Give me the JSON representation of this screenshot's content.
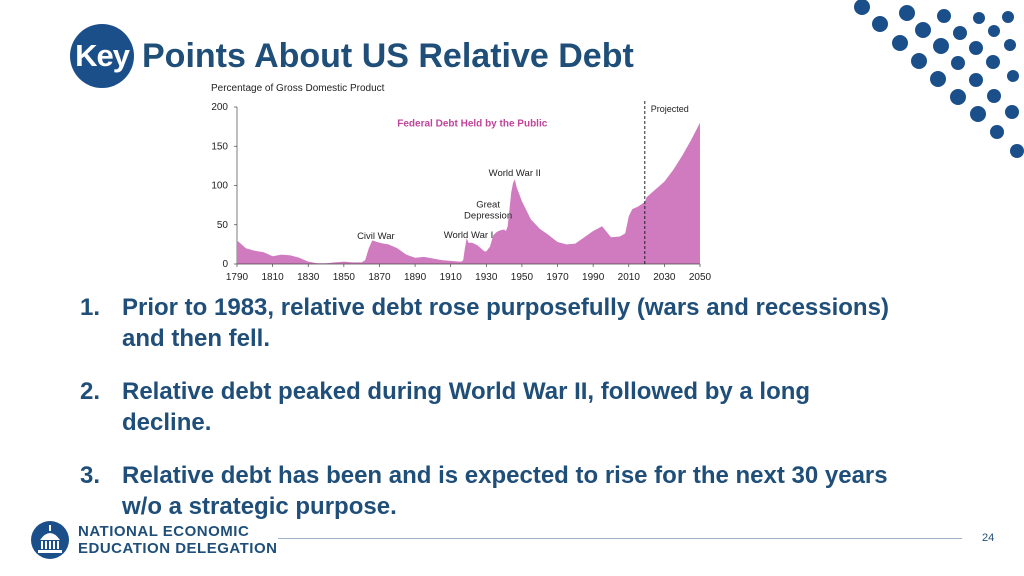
{
  "slide": {
    "title_key": "Key",
    "title_rest": "Points About US Relative Debt",
    "page_number": "24"
  },
  "chart_data": {
    "type": "area",
    "ylabel": "Percentage of Gross Domestic Product",
    "series_label": "Federal Debt Held by the Public",
    "projected_label": "Projected",
    "projection_start": 2019,
    "xlim": [
      1790,
      2050
    ],
    "ylim": [
      0,
      200
    ],
    "x_ticks": [
      "1790",
      "1810",
      "1830",
      "1850",
      "1870",
      "1890",
      "1910",
      "1930",
      "1950",
      "1970",
      "1990",
      "2010",
      "2030",
      "2050"
    ],
    "y_ticks": [
      "0",
      "50",
      "100",
      "150",
      "200"
    ],
    "annotations": [
      {
        "text": "Civil War",
        "x": 1868,
        "y": 32
      },
      {
        "text": "World War I",
        "x": 1920,
        "y": 33
      },
      {
        "text": "Great",
        "x": 1931,
        "y": 72
      },
      {
        "text": "Depression",
        "x": 1931,
        "y": 58
      },
      {
        "text": "World War II",
        "x": 1946,
        "y": 112
      }
    ],
    "x": [
      1790,
      1795,
      1800,
      1805,
      1810,
      1815,
      1820,
      1825,
      1830,
      1835,
      1840,
      1845,
      1850,
      1855,
      1860,
      1862,
      1864,
      1866,
      1870,
      1875,
      1880,
      1885,
      1890,
      1895,
      1900,
      1905,
      1910,
      1915,
      1916,
      1917,
      1918,
      1919,
      1920,
      1922,
      1925,
      1929,
      1930,
      1932,
      1934,
      1936,
      1938,
      1940,
      1941,
      1942,
      1943,
      1944,
      1945,
      1946,
      1947,
      1948,
      1950,
      1955,
      1960,
      1965,
      1970,
      1975,
      1980,
      1985,
      1990,
      1995,
      2000,
      2005,
      2008,
      2010,
      2012,
      2015,
      2019,
      2020,
      2025,
      2030,
      2035,
      2040,
      2045,
      2050
    ],
    "values": [
      30,
      20,
      17,
      15,
      10,
      12,
      11,
      8,
      3,
      1,
      1,
      2,
      3,
      2,
      2,
      5,
      20,
      30,
      27,
      25,
      20,
      12,
      8,
      9,
      7,
      5,
      4,
      3,
      3,
      5,
      20,
      33,
      27,
      27,
      24,
      16,
      16,
      22,
      37,
      41,
      43,
      44,
      42,
      48,
      70,
      91,
      103,
      108,
      98,
      92,
      80,
      57,
      45,
      37,
      28,
      25,
      26,
      34,
      42,
      48,
      34,
      35,
      39,
      61,
      70,
      73,
      79,
      85,
      95,
      105,
      120,
      138,
      158,
      180
    ]
  },
  "points": [
    {
      "num": "1.",
      "line1": "Prior to 1983, relative debt rose purposefully (wars and recessions)",
      "line2": "and then fell."
    },
    {
      "num": "2.",
      "line1": "Relative debt peaked during World War II, followed by a long",
      "line2": "decline."
    },
    {
      "num": "3.",
      "line1": "Relative debt has been and is expected to rise for the next 30 years",
      "line2": "w/o a strategic purpose."
    }
  ],
  "footer": {
    "org_line1": "NATIONAL ECONOMIC",
    "org_line2": "EDUCATION DELEGATION"
  },
  "colors": {
    "accent": "#1f4e79",
    "dot": "#1b4f8a",
    "area": "#d07bbf",
    "series_label": "#c1449b"
  }
}
